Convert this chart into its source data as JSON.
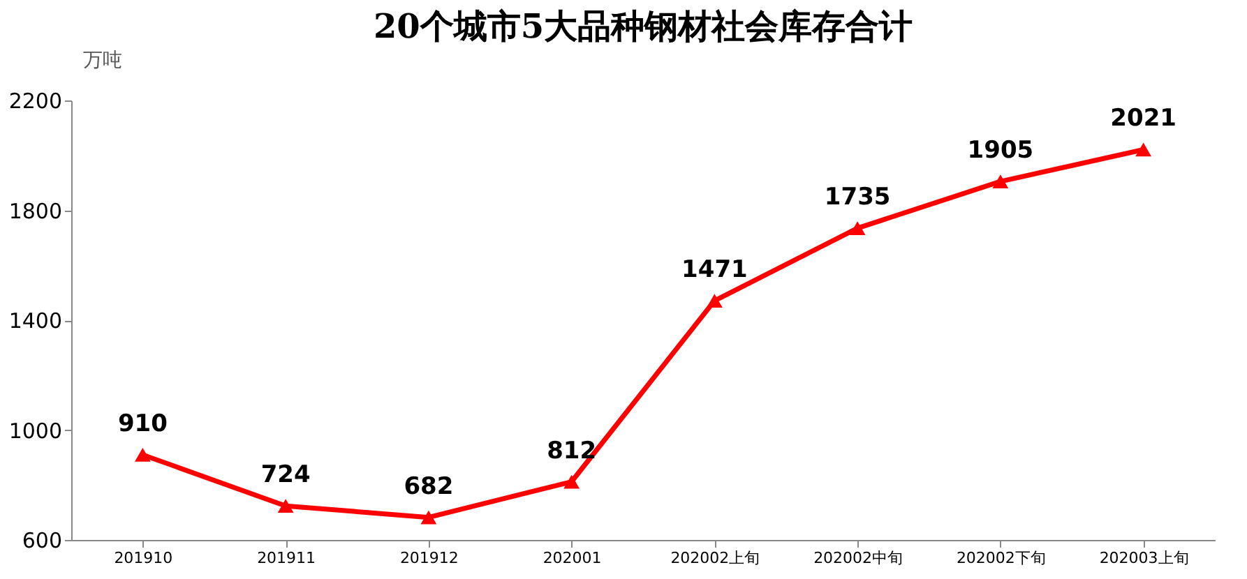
{
  "chart_data": {
    "type": "line",
    "title": "20个城市5大品种钢材社会库存合计",
    "ylabel": "万吨",
    "categories": [
      "201910",
      "201911",
      "201912",
      "202001",
      "202002上旬",
      "202002中旬",
      "202002下旬",
      "202003上旬"
    ],
    "series": [
      {
        "color": "#ff0000",
        "values": [
          910,
          724,
          682,
          812,
          1471,
          1735,
          1905,
          2021
        ]
      }
    ],
    "ylim": [
      600,
      2200
    ],
    "yticks": [
      600,
      1000,
      1400,
      1800,
      2200
    ],
    "grid": false,
    "marker": "triangle",
    "line_style": "solid",
    "data_labels": true
  }
}
